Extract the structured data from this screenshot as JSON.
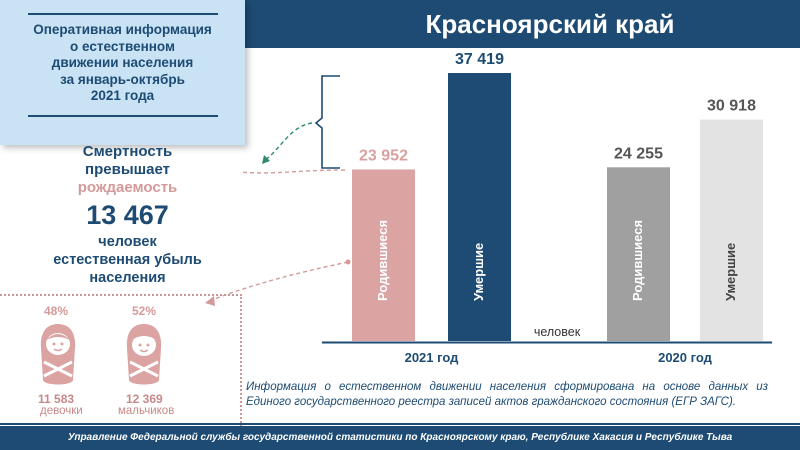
{
  "header": {
    "region": "Красноярский край"
  },
  "infobox": {
    "text": "Оперативная информация\nо естественном\nдвижении населения\nза январь-октябрь\n2021 года"
  },
  "mortality": {
    "line1": "Смертность",
    "line2": "превышает",
    "line3": "рождаемость"
  },
  "loss": {
    "number": "13 467",
    "caption": "человек\nестественная убыль\nнаселения"
  },
  "kids": {
    "girls": {
      "percent": "48%",
      "count": "11 583",
      "label": "девочки"
    },
    "boys": {
      "percent": "52%",
      "count": "12 369",
      "label": "мальчиков"
    }
  },
  "colors": {
    "navy": "#1d4b73",
    "pink": "#dca3a3",
    "gray": "#a0a0a0",
    "light_gray": "#e3e3e3",
    "info_bg": "#c9e2f4"
  },
  "chart_data": {
    "type": "bar",
    "unit": "человек",
    "groups": [
      {
        "label": "2021 год",
        "bars": [
          {
            "name": "Родившиеся",
            "value": 23952,
            "value_label": "23 952",
            "color": "#dca3a3",
            "label_color": "#d9a0a0"
          },
          {
            "name": "Умершие",
            "value": 37419,
            "value_label": "37 419",
            "color": "#1d4b73",
            "label_color": "#1d4b73"
          }
        ]
      },
      {
        "label": "2020 год",
        "bars": [
          {
            "name": "Родившиеся",
            "value": 24255,
            "value_label": "24 255",
            "color": "#a0a0a0",
            "label_color": "#555555"
          },
          {
            "name": "Умершие",
            "value": 30918,
            "value_label": "30 918",
            "color": "#e3e3e3",
            "label_color": "#555555"
          }
        ]
      }
    ]
  },
  "footnote": "Информация о естественном движении населения сформирована на основе данных из Единого государственного реестра записей актов гражданского состояния (ЕГР ЗАГС).",
  "footer": "Управление Федеральной службы государственной статистики по Красноярскому краю, Республике Хакасия и Республике Тыва"
}
